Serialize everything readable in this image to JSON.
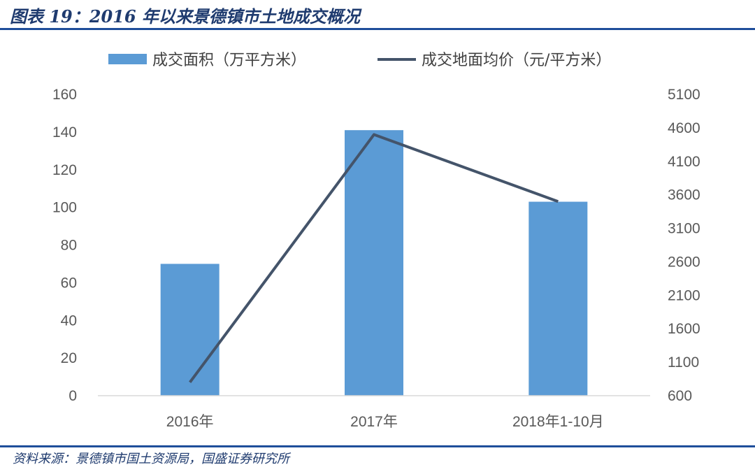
{
  "header": {
    "title": "图表 19：2016 年以来景德镇市土地成交概况"
  },
  "footer": {
    "source": "资料来源：景德镇市国土资源局，国盛证券研究所"
  },
  "colors": {
    "bar": "#5b9bd5",
    "line": "#44546a",
    "rule": "#1f4e9a"
  },
  "chart_data": {
    "type": "bar",
    "categories": [
      "2016年",
      "2017年",
      "2018年1-10月"
    ],
    "series": [
      {
        "name": "成交面积（万平方米）",
        "type": "bar",
        "axis": "left",
        "values": [
          70,
          141,
          103
        ]
      },
      {
        "name": "成交地面均价（元/平方米）",
        "type": "line",
        "axis": "right",
        "values": [
          800,
          4500,
          3500
        ]
      }
    ],
    "y_left": {
      "min": 0,
      "max": 160,
      "step": 20,
      "ticks": [
        "0",
        "20",
        "40",
        "60",
        "80",
        "100",
        "120",
        "140",
        "160"
      ]
    },
    "y_right": {
      "min": 600,
      "max": 5100,
      "step": 500,
      "ticks": [
        "600",
        "1100",
        "1600",
        "2100",
        "2600",
        "3100",
        "3600",
        "4100",
        "4600",
        "5100"
      ]
    },
    "legend": "top",
    "grid": false
  }
}
